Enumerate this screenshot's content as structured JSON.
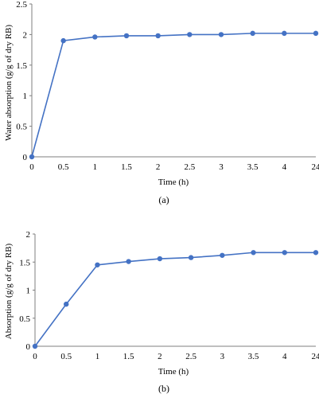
{
  "colors": {
    "series": "#4472C4",
    "axis": "#7f7f7f"
  },
  "chart_data": [
    {
      "type": "line",
      "caption": "(a)",
      "categories": [
        "0",
        "0.5",
        "1",
        "1.5",
        "2",
        "2.5",
        "3",
        "3.5",
        "4",
        "24"
      ],
      "series": [
        {
          "values": [
            0,
            1.9,
            1.96,
            1.98,
            1.98,
            2.0,
            2.0,
            2.02,
            2.02,
            2.02
          ]
        }
      ],
      "xlabel": "Time (h)",
      "ylabel": "Water absorption (g/g of dry RB)",
      "ylim": [
        0,
        2.5
      ],
      "yticks": [
        "0",
        "0.5",
        "1",
        "1.5",
        "2",
        "2.5"
      ],
      "grid": false
    },
    {
      "type": "line",
      "caption": "(b)",
      "categories": [
        "0",
        "0.5",
        "1",
        "1.5",
        "2",
        "2.5",
        "3",
        "3.5",
        "4",
        "24"
      ],
      "series": [
        {
          "values": [
            0,
            0.75,
            1.45,
            1.51,
            1.56,
            1.58,
            1.62,
            1.67,
            1.67,
            1.67
          ]
        }
      ],
      "xlabel": "Time (h)",
      "ylabel": "Absorption (g/g of dry RB)",
      "ylim": [
        0,
        2
      ],
      "yticks": [
        "0",
        "0.5",
        "1",
        "1.5",
        "2"
      ],
      "grid": false
    }
  ]
}
